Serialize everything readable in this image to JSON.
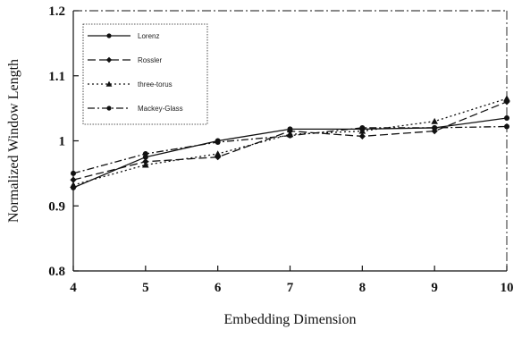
{
  "chart_data": {
    "type": "line",
    "title": "",
    "xlabel": "Embedding Dimension",
    "ylabel": "Normalized Window Length",
    "x": [
      4,
      5,
      6,
      7,
      8,
      9,
      10
    ],
    "xlim": [
      4,
      10
    ],
    "ylim": [
      0.8,
      1.2
    ],
    "x_ticks": [
      "4",
      "5",
      "6",
      "7",
      "8",
      "9",
      "10"
    ],
    "y_ticks": [
      "0.8",
      "0.9",
      "1",
      "1.1",
      "1.2"
    ],
    "y_tick_values": [
      0.8,
      0.9,
      1.0,
      1.1,
      1.2
    ],
    "grid": false,
    "legend_position": "top-left",
    "series": [
      {
        "name": "Lorenz",
        "values": [
          0.928,
          0.975,
          1.0,
          1.018,
          1.018,
          1.02,
          1.035
        ],
        "color": "#111111",
        "dash": "solid",
        "marker": "circle"
      },
      {
        "name": "Rossler",
        "values": [
          0.94,
          0.968,
          0.975,
          1.015,
          1.007,
          1.015,
          1.06
        ],
        "color": "#111111",
        "dash": "dashed",
        "marker": "diamond"
      },
      {
        "name": "three-torus",
        "values": [
          0.932,
          0.963,
          0.98,
          1.01,
          1.015,
          1.03,
          1.065
        ],
        "color": "#111111",
        "dash": "dotted",
        "marker": "triangle"
      },
      {
        "name": "Mackey-Glass",
        "values": [
          0.95,
          0.98,
          0.998,
          1.008,
          1.02,
          1.02,
          1.022
        ],
        "color": "#111111",
        "dash": "dashdot",
        "marker": "circle"
      }
    ]
  }
}
